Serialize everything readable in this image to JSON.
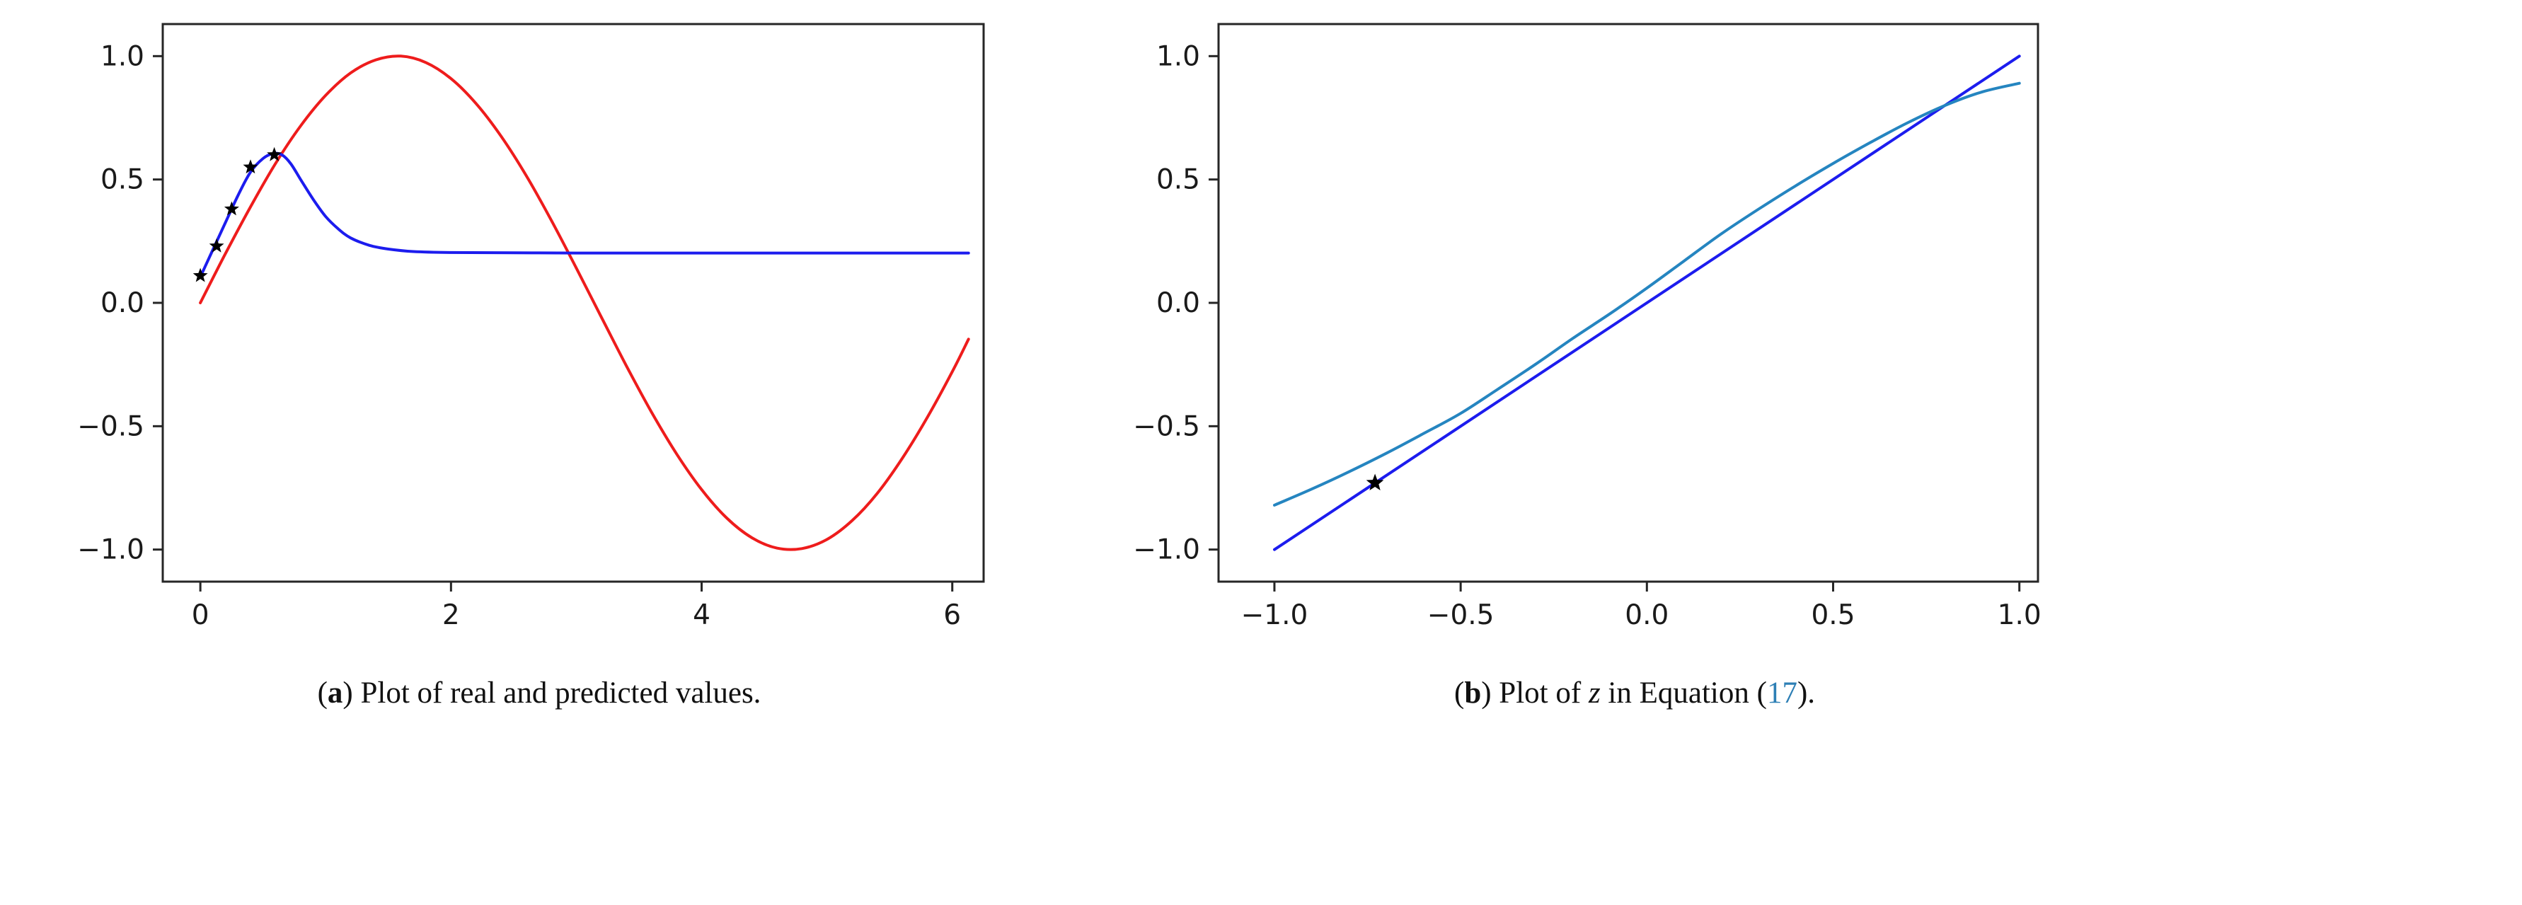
{
  "page": {
    "background": "#ffffff"
  },
  "colors": {
    "axis": "#262626",
    "tick_text": "#1a1a1a",
    "caption_text": "#111111",
    "link": "#2d7fb5",
    "real_red": "#ee1c1c",
    "predicted_blue": "#1c1cee",
    "identity_blue": "#1c1cee",
    "z_teal": "#2585c0",
    "marker_black": "#000000"
  },
  "chart_data": [
    {
      "id": "a",
      "type": "line",
      "title": "",
      "xlabel": "",
      "ylabel": "",
      "grid": false,
      "legend": "none",
      "xlim": [
        -0.3,
        6.25
      ],
      "ylim": [
        -1.13,
        1.13
      ],
      "xticks": [
        0,
        2,
        4,
        6
      ],
      "xtick_labels": [
        "0",
        "2",
        "4",
        "6"
      ],
      "yticks": [
        -1.0,
        -0.5,
        0.0,
        0.5,
        1.0
      ],
      "ytick_labels": [
        "−1.0",
        "−0.5",
        "0.0",
        "0.5",
        "1.0"
      ],
      "series": [
        {
          "name": "real-sine",
          "color": "#ee1c1c",
          "width": 4,
          "x": [
            0,
            0.2,
            0.4,
            0.6,
            0.8,
            1,
            1.2,
            1.4,
            1.6,
            1.8,
            2,
            2.2,
            2.4,
            2.6,
            2.8,
            3,
            3.2,
            3.4,
            3.6,
            3.8,
            4,
            4.2,
            4.4,
            4.6,
            4.8,
            5,
            5.2,
            5.4,
            5.6,
            5.8,
            6,
            6.13
          ],
          "y": [
            0,
            0.199,
            0.389,
            0.565,
            0.717,
            0.841,
            0.932,
            0.985,
            1,
            0.974,
            0.909,
            0.808,
            0.675,
            0.516,
            0.335,
            0.141,
            -0.058,
            -0.256,
            -0.443,
            -0.612,
            -0.757,
            -0.872,
            -0.952,
            -0.994,
            -0.996,
            -0.959,
            -0.883,
            -0.773,
            -0.631,
            -0.465,
            -0.279,
            -0.147
          ]
        },
        {
          "name": "predicted",
          "color": "#1c1cee",
          "width": 4,
          "x": [
            0,
            0.1,
            0.2,
            0.3,
            0.4,
            0.5,
            0.58,
            0.65,
            0.72,
            0.8,
            0.9,
            1,
            1.1,
            1.2,
            1.35,
            1.5,
            1.7,
            2,
            2.5,
            3,
            4,
            5,
            6.13
          ],
          "y": [
            0.105,
            0.215,
            0.325,
            0.435,
            0.53,
            0.585,
            0.605,
            0.6,
            0.565,
            0.5,
            0.42,
            0.35,
            0.3,
            0.263,
            0.233,
            0.218,
            0.208,
            0.204,
            0.203,
            0.202,
            0.202,
            0.202,
            0.202
          ]
        }
      ],
      "markers": [
        {
          "name": "sample-point",
          "shape": "star",
          "color": "#000000",
          "size": 11,
          "points": [
            [
              0,
              0.11
            ],
            [
              0.13,
              0.23
            ],
            [
              0.25,
              0.38
            ],
            [
              0.4,
              0.55
            ],
            [
              0.59,
              0.6
            ]
          ]
        }
      ]
    },
    {
      "id": "b",
      "type": "line",
      "title": "",
      "xlabel": "",
      "ylabel": "",
      "grid": false,
      "legend": "none",
      "xlim": [
        -1.15,
        1.05
      ],
      "ylim": [
        -1.13,
        1.13
      ],
      "xticks": [
        -1.0,
        -0.5,
        0.0,
        0.5,
        1.0
      ],
      "xtick_labels": [
        "−1.0",
        "−0.5",
        "0.0",
        "0.5",
        "1.0"
      ],
      "yticks": [
        -1.0,
        -0.5,
        0.0,
        0.5,
        1.0
      ],
      "ytick_labels": [
        "−1.0",
        "−0.5",
        "0.0",
        "0.5",
        "1.0"
      ],
      "series": [
        {
          "name": "identity-line",
          "color": "#1c1cee",
          "width": 4,
          "x": [
            -1,
            1
          ],
          "y": [
            -1,
            1
          ]
        },
        {
          "name": "z-curve",
          "color": "#2585c0",
          "width": 4,
          "x": [
            -1,
            -0.9,
            -0.8,
            -0.7,
            -0.6,
            -0.5,
            -0.4,
            -0.3,
            -0.2,
            -0.1,
            0,
            0.1,
            0.2,
            0.3,
            0.4,
            0.5,
            0.6,
            0.7,
            0.8,
            0.9,
            1
          ],
          "y": [
            -0.82,
            -0.755,
            -0.685,
            -0.61,
            -0.53,
            -0.448,
            -0.35,
            -0.25,
            -0.145,
            -0.045,
            0.06,
            0.17,
            0.28,
            0.38,
            0.475,
            0.565,
            0.65,
            0.73,
            0.8,
            0.855,
            0.89
          ]
        }
      ],
      "markers": [
        {
          "name": "z-point",
          "shape": "star",
          "color": "#000000",
          "size": 13,
          "points": [
            [
              -0.73,
              -0.73
            ]
          ]
        }
      ]
    }
  ],
  "captions": [
    {
      "id": "a",
      "segments": [
        {
          "t": "("
        },
        {
          "t": "a",
          "b": true
        },
        {
          "t": ") Plot of real and predicted values."
        }
      ]
    },
    {
      "id": "b",
      "segments": [
        {
          "t": "("
        },
        {
          "t": "b",
          "b": true
        },
        {
          "t": ") Plot of "
        },
        {
          "t": "z",
          "i": true
        },
        {
          "t": " in Equation ("
        },
        {
          "t": "17",
          "link": true
        },
        {
          "t": ")."
        }
      ]
    }
  ]
}
